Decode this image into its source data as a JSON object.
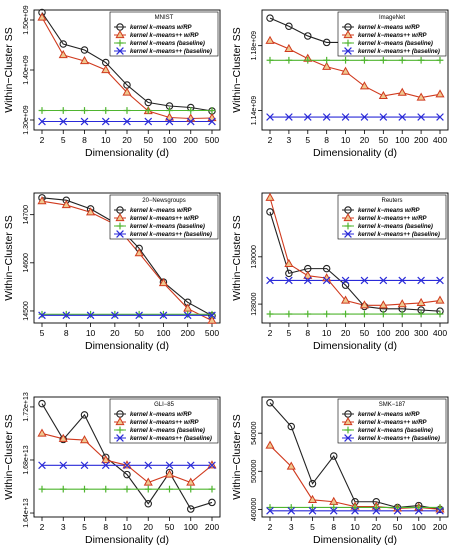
{
  "colors": {
    "km_rp": "#222222",
    "kmpp_rp": "#d03a1e",
    "km_base": "#4fb52f",
    "kmpp_base": "#2a2ad8",
    "tri_fill": "#f0c890"
  },
  "chart_data": [
    {
      "type": "line",
      "title": "MNIST",
      "xlabel": "Dimensionality (d)",
      "ylabel": "Within−Cluster SS",
      "categories": [
        "2",
        "5",
        "8",
        "10",
        "20",
        "50",
        "100",
        "200",
        "500"
      ],
      "ylim": [
        1280000000.0,
        1520000000.0
      ],
      "yticks": [
        1300000000.0,
        1400000000.0,
        1500000000.0
      ],
      "ytick_labels": [
        "1.30e+09",
        "1.40e+09",
        "1.50e+09"
      ],
      "legend_position": "top-right",
      "series": [
        {
          "name": "kernel k−means w/RP",
          "marker": "circle",
          "values": [
            1515000000.0,
            1452000000.0,
            1440000000.0,
            1415000000.0,
            1370000000.0,
            1335000000.0,
            1328000000.0,
            1325000000.0,
            1318000000.0
          ]
        },
        {
          "name": "kernel k−means++ w/RP",
          "marker": "triangle",
          "values": [
            1505000000.0,
            1430000000.0,
            1418000000.0,
            1400000000.0,
            1355000000.0,
            1318000000.0,
            1305000000.0,
            1303000000.0,
            1304000000.0
          ]
        },
        {
          "name": "kernel k−means (baseline)",
          "marker": "plus",
          "values": [
            1319000000.0,
            1319000000.0,
            1319000000.0,
            1319000000.0,
            1319000000.0,
            1319000000.0,
            1319000000.0,
            1319000000.0,
            1319000000.0
          ]
        },
        {
          "name": "kernel k−means++ (baseline)",
          "marker": "cross",
          "values": [
            1297000000.0,
            1297000000.0,
            1297000000.0,
            1297000000.0,
            1297000000.0,
            1297000000.0,
            1297000000.0,
            1297000000.0,
            1297000000.0
          ]
        }
      ]
    },
    {
      "type": "line",
      "title": "ImageNet",
      "xlabel": "Dimensionality (d)",
      "ylabel": "Within−Cluster SS",
      "categories": [
        "2",
        "3",
        "5",
        "8",
        "10",
        "20",
        "50",
        "100",
        "200",
        "400"
      ],
      "ylim": [
        1128000000.0,
        1202000000.0
      ],
      "yticks": [
        1140000000.0,
        1180000000.0
      ],
      "ytick_labels": [
        "1.14e+09",
        "1.18e+09"
      ],
      "legend_position": "top-right",
      "series": [
        {
          "name": "kernel k−means w/RP",
          "marker": "circle",
          "values": [
            1197000000.0,
            1192000000.0,
            1186000000.0,
            1182000000.0,
            1182000000.0,
            1181000000.0,
            1179000000.0,
            1178000000.0,
            1178000000.0,
            1176000000.0
          ]
        },
        {
          "name": "kernel k−means++ w/RP",
          "marker": "triangle",
          "values": [
            1183000000.0,
            1178000000.0,
            1172000000.0,
            1167000000.0,
            1164000000.0,
            1155000000.0,
            1149000000.0,
            1151000000.0,
            1148000000.0,
            1150000000.0
          ]
        },
        {
          "name": "kernel k−means (baseline)",
          "marker": "plus",
          "values": [
            1171000000.0,
            1171000000.0,
            1171000000.0,
            1171000000.0,
            1171000000.0,
            1171000000.0,
            1171000000.0,
            1171000000.0,
            1171000000.0,
            1171000000.0
          ]
        },
        {
          "name": "kernel k−means++ (baseline)",
          "marker": "cross",
          "values": [
            1136000000.0,
            1136000000.0,
            1136000000.0,
            1136000000.0,
            1136000000.0,
            1136000000.0,
            1136000000.0,
            1136000000.0,
            1136000000.0,
            1136000000.0
          ]
        }
      ]
    },
    {
      "type": "line",
      "title": "20−Newsgroups",
      "xlabel": "Dimensionality (d)",
      "ylabel": "Within−Cluster SS",
      "categories": [
        "5",
        "8",
        "10",
        "20",
        "50",
        "100",
        "200",
        "500"
      ],
      "ylim": [
        14475,
        14745
      ],
      "yticks": [
        14500,
        14600,
        14700
      ],
      "ytick_labels": [
        "14500",
        "14600",
        "14700"
      ],
      "legend_position": "top-right",
      "series": [
        {
          "name": "kernel k−means w/RP",
          "marker": "circle",
          "values": [
            14735,
            14730,
            14712,
            14683,
            14630,
            14560,
            14518,
            14490
          ]
        },
        {
          "name": "kernel k−means++ w/RP",
          "marker": "triangle",
          "values": [
            14728,
            14720,
            14705,
            14680,
            14620,
            14558,
            14505,
            14480
          ]
        },
        {
          "name": "kernel k−means (baseline)",
          "marker": "plus",
          "values": [
            14493,
            14493,
            14493,
            14493,
            14493,
            14493,
            14493,
            14493
          ]
        },
        {
          "name": "kernel k−means++ (baseline)",
          "marker": "cross",
          "values": [
            14491,
            14491,
            14491,
            14491,
            14491,
            14491,
            14491,
            14491
          ]
        }
      ]
    },
    {
      "type": "line",
      "title": "Reuters",
      "xlabel": "Dimensionality (d)",
      "ylabel": "Within−Cluster SS",
      "categories": [
        "2",
        "5",
        "8",
        "10",
        "20",
        "50",
        "100",
        "200",
        "300",
        "400"
      ],
      "ylim": [
        127200,
        132700
      ],
      "yticks": [
        128000,
        130000
      ],
      "ytick_labels": [
        "128000",
        "130000"
      ],
      "legend_position": "top-right",
      "series": [
        {
          "name": "kernel k−means w/RP",
          "marker": "circle",
          "values": [
            131900,
            129300,
            129500,
            129500,
            128800,
            127900,
            127800,
            127800,
            127750,
            127700
          ]
        },
        {
          "name": "kernel k−means++ w/RP",
          "marker": "triangle",
          "values": [
            132500,
            129700,
            129200,
            129100,
            128150,
            127950,
            127950,
            128000,
            128050,
            128150
          ]
        },
        {
          "name": "kernel k−means (baseline)",
          "marker": "plus",
          "values": [
            127580,
            127580,
            127580,
            127580,
            127580,
            127580,
            127580,
            127580,
            127580,
            127580
          ]
        },
        {
          "name": "kernel k−means++ (baseline)",
          "marker": "cross",
          "values": [
            129000,
            129000,
            129000,
            129000,
            129000,
            129000,
            129000,
            129000,
            129000,
            129000
          ]
        }
      ]
    },
    {
      "type": "line",
      "title": "GLI−85",
      "xlabel": "Dimensionality (d)",
      "ylabel": "Within−Cluster SS",
      "categories": [
        "2",
        "3",
        "5",
        "8",
        "10",
        "20",
        "50",
        "100",
        "200"
      ],
      "ylim": [
        16370000000000.0,
        17275000000000.0
      ],
      "yticks": [
        16400000000000.0,
        16800000000000.0,
        17200000000000.0
      ],
      "ytick_labels": [
        "1.64e+13",
        "1.68e+13",
        "1.72e+13"
      ],
      "legend_position": "top-right",
      "series": [
        {
          "name": "kernel k−means w/RP",
          "marker": "circle",
          "values": [
            17225000000000.0,
            16955000000000.0,
            17140000000000.0,
            16820000000000.0,
            16690000000000.0,
            16470000000000.0,
            16705000000000.0,
            16430000000000.0,
            16480000000000.0
          ]
        },
        {
          "name": "kernel k−means++ w/RP",
          "marker": "triangle",
          "values": [
            17000000000000.0,
            16960000000000.0,
            16950000000000.0,
            16800000000000.0,
            16760000000000.0,
            16630000000000.0,
            16690000000000.0,
            16630000000000.0,
            16760000000000.0
          ]
        },
        {
          "name": "kernel k−means (baseline)",
          "marker": "plus",
          "values": [
            16580000000000.0,
            16580000000000.0,
            16580000000000.0,
            16580000000000.0,
            16580000000000.0,
            16580000000000.0,
            16580000000000.0,
            16580000000000.0,
            16580000000000.0
          ]
        },
        {
          "name": "kernel k−means++ (baseline)",
          "marker": "cross",
          "values": [
            16760000000000.0,
            16760000000000.0,
            16760000000000.0,
            16760000000000.0,
            16760000000000.0,
            16760000000000.0,
            16760000000000.0,
            16760000000000.0,
            16760000000000.0
          ]
        }
      ]
    },
    {
      "type": "line",
      "title": "SMK−187",
      "xlabel": "Dimensionality (d)",
      "ylabel": "Within−Cluster SS",
      "categories": [
        "2",
        "3",
        "5",
        "8",
        "10",
        "20",
        "50",
        "100",
        "200"
      ],
      "ylim": [
        452000,
        578000
      ],
      "yticks": [
        460000,
        500000,
        540000
      ],
      "ytick_labels": [
        "460000",
        "500000",
        "540000"
      ],
      "legend_position": "top-right",
      "series": [
        {
          "name": "kernel k−means w/RP",
          "marker": "circle",
          "values": [
            572000,
            547000,
            487000,
            516000,
            468000,
            468000,
            462000,
            464000,
            460000
          ]
        },
        {
          "name": "kernel k−means++ w/RP",
          "marker": "triangle",
          "values": [
            527000,
            505000,
            470000,
            468000,
            463000,
            463000,
            461000,
            462000,
            460000
          ]
        },
        {
          "name": "kernel k−means (baseline)",
          "marker": "plus",
          "values": [
            462000,
            462000,
            462000,
            462000,
            462000,
            462000,
            462000,
            462000,
            462000
          ]
        },
        {
          "name": "kernel k−means++ (baseline)",
          "marker": "cross",
          "values": [
            458500,
            458500,
            458500,
            458500,
            458500,
            458500,
            458500,
            458500,
            458500
          ]
        }
      ]
    }
  ]
}
